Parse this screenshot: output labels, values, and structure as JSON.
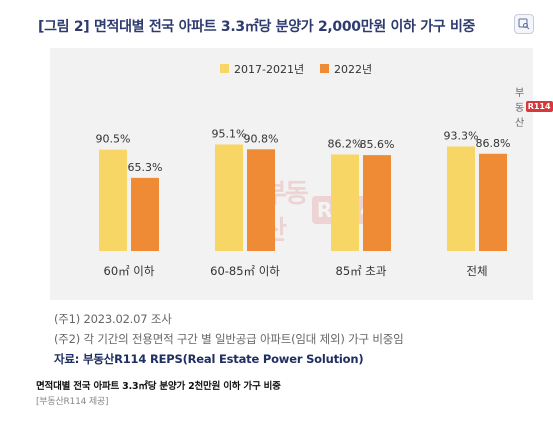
{
  "figure": {
    "title": "[그림 2] 면적대별 전국 아파트 3.3㎡당 분양가 2,000만원 이하 가구 비중",
    "logo_text": "부동산",
    "logo_mark": "R114",
    "share_icon": "image-search-icon",
    "notes": [
      "(주1) 2023.02.07  조사",
      "(주2) 각 기간의 전용면적 구간 별 일반공급 아파트(임대 제외) 가구 비중임"
    ],
    "source": "자료: 부동산R114 REPS(Real Estate Power Solution)"
  },
  "colors": {
    "series_2017": "#f7d665",
    "series_2022": "#ef8a35",
    "title": "#2e3b6e",
    "background": "#f2f2f2"
  },
  "chart_data": {
    "type": "bar",
    "title": "[그림 2] 면적대별 전국 아파트 3.3㎡당 분양가 2,000만원 이하 가구 비중",
    "categories": [
      "60㎡ 이하",
      "60-85㎡ 이하",
      "85㎡ 초과",
      "전체"
    ],
    "series": [
      {
        "name": "2017-2021년",
        "values": [
          90.5,
          95.1,
          86.2,
          93.3
        ],
        "labels": [
          "90.5%",
          "95.1%",
          "86.2%",
          "93.3%"
        ]
      },
      {
        "name": "2022년",
        "values": [
          65.3,
          90.8,
          85.6,
          86.8
        ],
        "labels": [
          "65.3%",
          "90.8%",
          "85.6%",
          "86.8%"
        ]
      }
    ],
    "xlabel": "",
    "ylabel": "",
    "ylim": [
      0,
      100
    ],
    "grid": false,
    "legend": "top-center"
  },
  "caption": "면적대별 전국 아파트 3.3㎡당 분양가 2천만원 이하 가구 비중",
  "credit": "[부동산R114 제공]"
}
